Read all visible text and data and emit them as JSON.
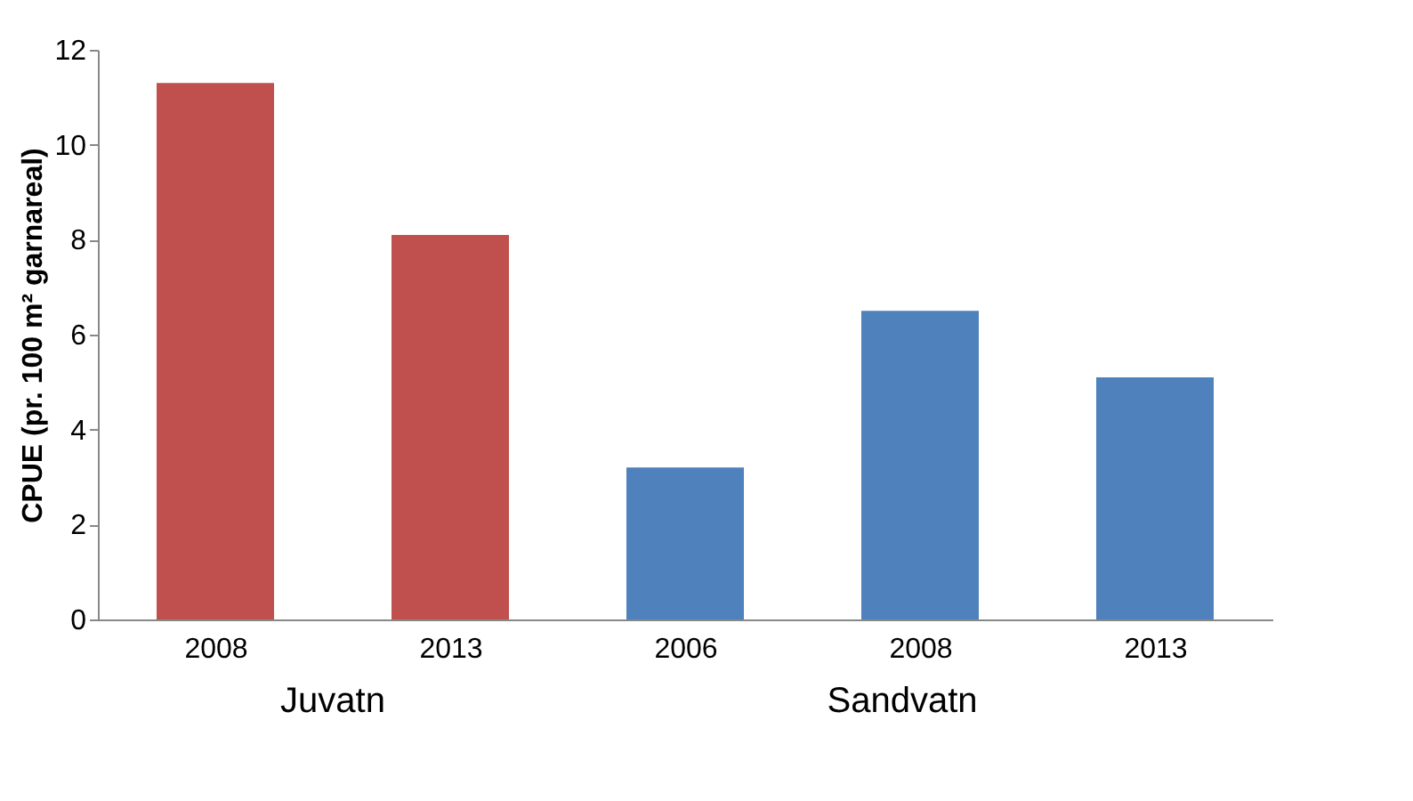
{
  "chart_data": {
    "type": "bar",
    "ylabel": "CPUE (pr. 100 m² garnareal)",
    "categories": [
      "2008",
      "2013",
      "2006",
      "2008",
      "2013"
    ],
    "values": [
      11.3,
      8.1,
      3.2,
      6.5,
      5.1
    ],
    "colors": [
      "#c0504d",
      "#c0504d",
      "#4f81bd",
      "#4f81bd",
      "#4f81bd"
    ],
    "ylim": [
      0,
      12
    ],
    "yticks": [
      0,
      2,
      4,
      6,
      8,
      10,
      12
    ],
    "grid": false,
    "annotations": [
      "Juvatn",
      "Sandvatn"
    ]
  }
}
